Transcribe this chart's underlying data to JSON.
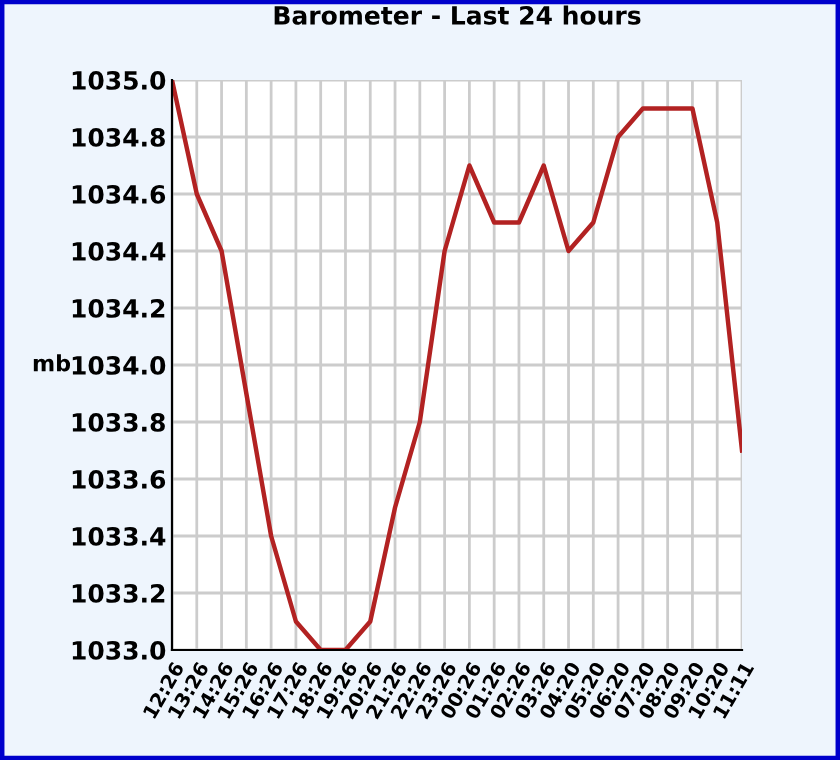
{
  "chart_data": {
    "type": "line",
    "title": "Barometer - Last 24 hours",
    "ylabel": "mb",
    "categories": [
      "12:26",
      "13:26",
      "14:26",
      "15:26",
      "16:26",
      "17:26",
      "18:26",
      "19:26",
      "20:26",
      "21:26",
      "22:26",
      "23:26",
      "00:26",
      "01:26",
      "02:26",
      "03:26",
      "04:20",
      "05:20",
      "06:20",
      "07:20",
      "08:20",
      "09:20",
      "10:20",
      "11:11"
    ],
    "series": [
      {
        "color": "#b22222",
        "values": [
          1035.0,
          1034.6,
          1034.4,
          1033.9,
          1033.4,
          1033.1,
          1033.0,
          1033.0,
          1033.1,
          1033.5,
          1033.8,
          1034.4,
          1034.7,
          1034.5,
          1034.5,
          1034.7,
          1034.4,
          1034.5,
          1034.8,
          1034.9,
          1034.9,
          1034.9,
          1034.5,
          1033.7
        ]
      }
    ],
    "ylim": [
      1033.0,
      1035.0
    ],
    "yticks": [
      {
        "value": 1033.0,
        "label": "1033.0"
      },
      {
        "value": 1033.2,
        "label": "1033.2"
      },
      {
        "value": 1033.4,
        "label": "1033.4"
      },
      {
        "value": 1033.6,
        "label": "1033.6"
      },
      {
        "value": 1033.8,
        "label": "1033.8"
      },
      {
        "value": 1034.0,
        "label": "1034.0"
      },
      {
        "value": 1034.2,
        "label": "1034.2"
      },
      {
        "value": 1034.4,
        "label": "1034.4"
      },
      {
        "value": 1034.6,
        "label": "1034.6"
      },
      {
        "value": 1034.8,
        "label": "1034.8"
      },
      {
        "value": 1035.0,
        "label": "1035.0"
      }
    ],
    "grid": true,
    "marker": "none",
    "line_style": "solid"
  }
}
